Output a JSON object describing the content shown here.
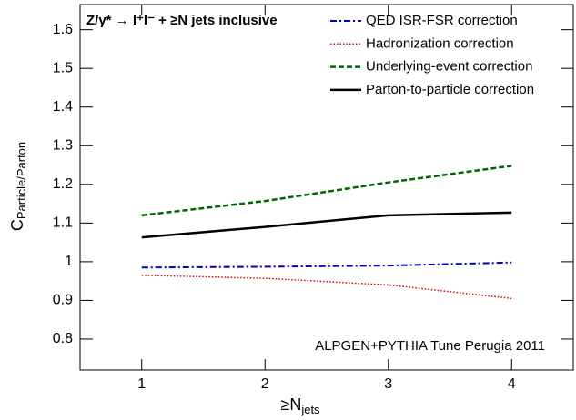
{
  "chart_data": {
    "type": "line",
    "title": "Z/γ* → l⁺l⁻ + ≥N jets inclusive",
    "x_label": {
      "main": "≥N",
      "sub": "jets"
    },
    "y_label": {
      "main": "C",
      "sub": "Particle/Parton"
    },
    "annotation": "ALPGEN+PYTHIA Tune Perugia 2011",
    "x": [
      1,
      2,
      3,
      4
    ],
    "series": [
      {
        "name": "QED ISR-FSR correction",
        "color": "#0000cc",
        "dash": "dashdot",
        "values": [
          0.985,
          0.987,
          0.99,
          0.998
        ]
      },
      {
        "name": "Hadronization correction",
        "color": "#e00000",
        "dash": "dotted",
        "values": [
          0.965,
          0.957,
          0.94,
          0.905
        ]
      },
      {
        "name": "Underlying-event correction",
        "color": "#006600",
        "dash": "dashed",
        "values": [
          1.12,
          1.157,
          1.205,
          1.248
        ]
      },
      {
        "name": "Parton-to-particle correction",
        "color": "#000000",
        "dash": "solid",
        "values": [
          1.063,
          1.09,
          1.12,
          1.127
        ]
      }
    ],
    "xlim": [
      0.5,
      4.5
    ],
    "xticks": [
      1,
      2,
      3,
      4
    ],
    "ylim": [
      0.72,
      1.665
    ],
    "yticks": [
      0.8,
      0.9,
      1,
      1.1,
      1.2,
      1.3,
      1.4,
      1.5,
      1.6
    ],
    "legend": "top-right"
  }
}
